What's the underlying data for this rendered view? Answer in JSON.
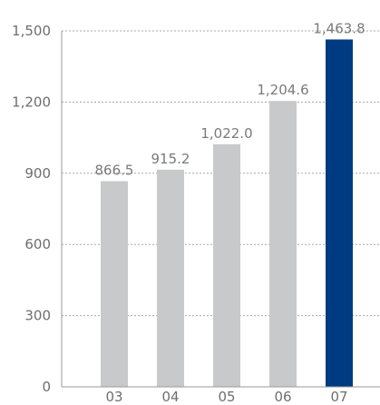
{
  "chart_data": {
    "type": "bar",
    "categories": [
      "03",
      "04",
      "05",
      "06",
      "07"
    ],
    "values": [
      866.5,
      915.2,
      1022.0,
      1204.6,
      1463.8
    ],
    "data_labels": [
      "866.5",
      "915.2",
      "1,022.0",
      "1,204.6",
      "1,463.8"
    ],
    "y_ticks": [
      0,
      300,
      600,
      900,
      1200,
      1500
    ],
    "y_tick_labels": [
      "0",
      "300",
      "600",
      "900",
      "1,200",
      "1,500"
    ],
    "ylim": [
      0,
      1500
    ],
    "grid": true,
    "colors": {
      "default_bar": "#c8c9ca",
      "highlight_bar": "#003a80",
      "highlight_category": "07"
    }
  }
}
